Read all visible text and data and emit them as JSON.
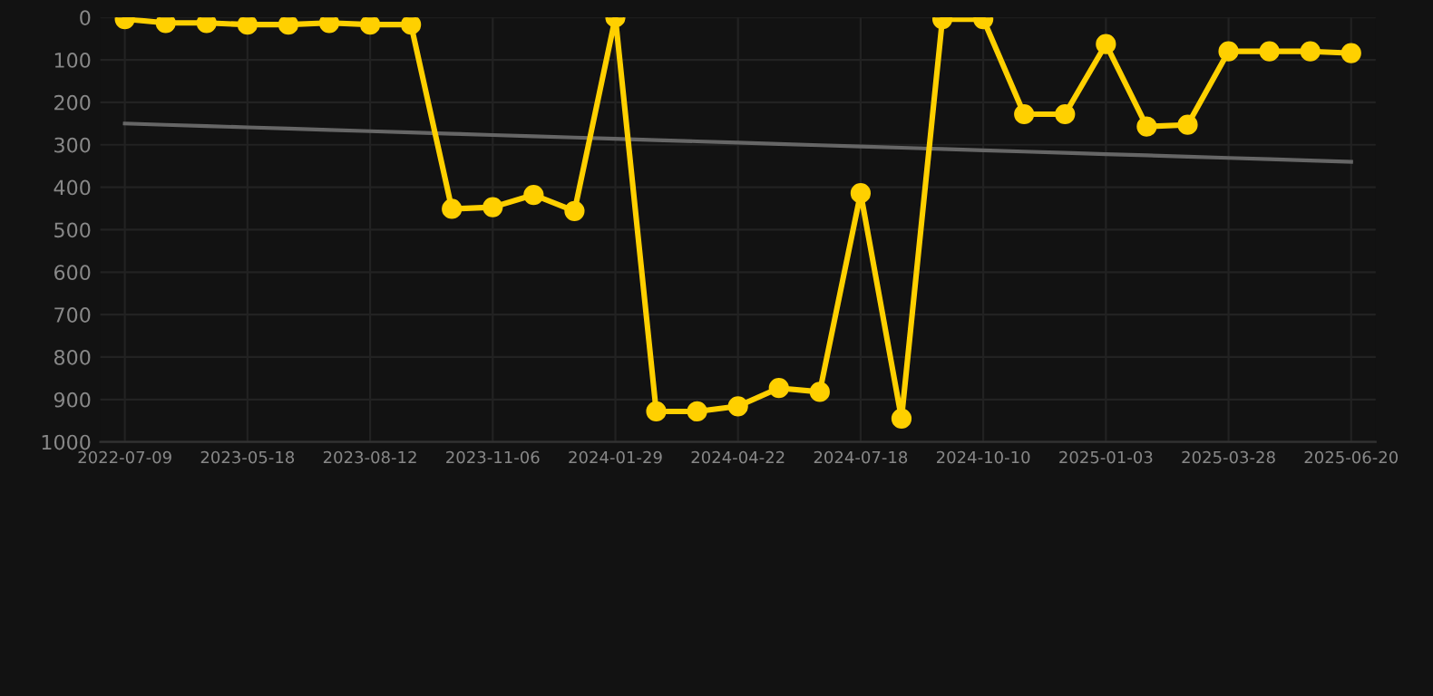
{
  "chart_data": {
    "type": "line",
    "categories": [
      "2022-07-09",
      null,
      null,
      "2023-05-18",
      null,
      null,
      "2023-08-12",
      null,
      null,
      "2023-11-06",
      null,
      null,
      "2024-01-29",
      null,
      null,
      "2024-04-22",
      null,
      null,
      "2024-07-18",
      null,
      null,
      "2024-10-10",
      null,
      null,
      "2025-01-03",
      null,
      null,
      "2025-03-28",
      null,
      null,
      "2025-06-20"
    ],
    "series": [
      {
        "color": "#ffd000",
        "marker": "circle",
        "values": [
          4,
          13,
          13,
          17,
          17,
          13,
          17,
          17,
          451,
          447,
          418,
          456,
          0,
          928,
          928,
          916,
          873,
          882,
          414,
          945,
          4,
          4,
          228,
          228,
          63,
          257,
          253,
          80,
          80,
          80,
          84
        ]
      },
      {
        "color": "#666666",
        "marker": "none",
        "values": [
          250,
          253,
          256,
          259,
          262,
          265,
          268,
          271,
          274,
          277,
          280,
          283,
          286,
          289,
          292,
          295,
          298,
          301,
          304,
          307,
          310,
          313,
          316,
          319,
          322,
          325,
          328,
          331,
          334,
          337,
          340
        ]
      }
    ],
    "ylim": [
      1000,
      0
    ],
    "yticks": [
      0,
      100,
      200,
      300,
      400,
      500,
      600,
      700,
      800,
      900,
      1000
    ],
    "grid": true,
    "line_style": "solid"
  }
}
